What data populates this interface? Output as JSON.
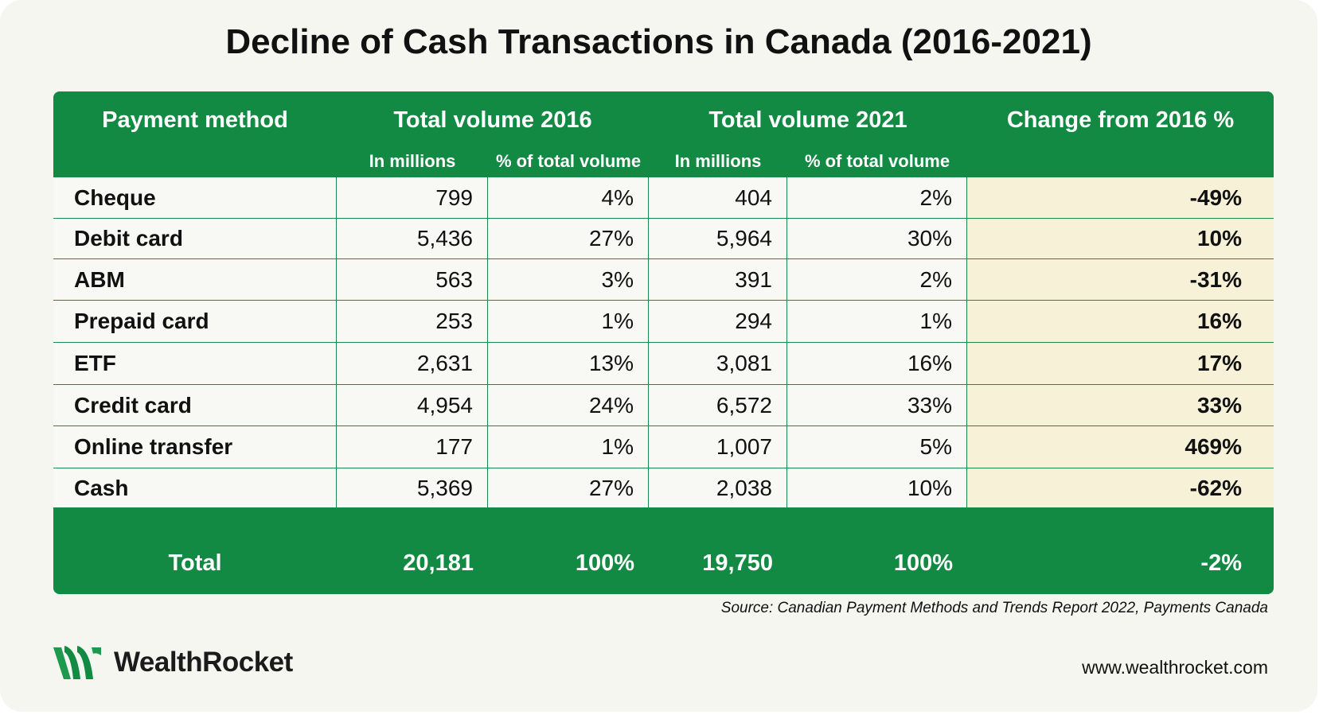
{
  "title": "Decline of Cash Transactions in Canada (2016-2021)",
  "table": {
    "headers": {
      "method": "Payment method",
      "vol2016": "Total volume 2016",
      "vol2021": "Total volume 2021",
      "change": "Change from 2016 %",
      "sub_millions_2016": "In millions",
      "sub_pct_2016": "% of total volume",
      "sub_millions_2021": "In millions",
      "sub_pct_2021": "% of total volume"
    },
    "rows": [
      {
        "method": "Cheque",
        "m2016": "799",
        "p2016": "4%",
        "m2021": "404",
        "p2021": "2%",
        "change": "-49%"
      },
      {
        "method": "Debit card",
        "m2016": "5,436",
        "p2016": "27%",
        "m2021": "5,964",
        "p2021": "30%",
        "change": "10%"
      },
      {
        "method": "ABM",
        "m2016": "563",
        "p2016": "3%",
        "m2021": "391",
        "p2021": "2%",
        "change": "-31%"
      },
      {
        "method": "Prepaid card",
        "m2016": "253",
        "p2016": "1%",
        "m2021": "294",
        "p2021": "1%",
        "change": "16%"
      },
      {
        "method": "ETF",
        "m2016": "2,631",
        "p2016": "13%",
        "m2021": "3,081",
        "p2021": "16%",
        "change": "17%"
      },
      {
        "method": "Credit card",
        "m2016": "4,954",
        "p2016": "24%",
        "m2021": "6,572",
        "p2021": "33%",
        "change": "33%"
      },
      {
        "method": "Online transfer",
        "m2016": "177",
        "p2016": "1%",
        "m2021": "1,007",
        "p2021": "5%",
        "change": "469%"
      },
      {
        "method": "Cash",
        "m2016": "5,369",
        "p2016": "27%",
        "m2021": "2,038",
        "p2021": "10%",
        "change": "-62%"
      }
    ],
    "total": {
      "method": "Total",
      "m2016": "20,181",
      "p2016": "100%",
      "m2021": "19,750",
      "p2021": "100%",
      "change": "-2%"
    }
  },
  "source": "Source: Canadian Payment Methods and Trends Report 2022, Payments Canada",
  "logo": {
    "name": "WealthRocket",
    "icon": "wealthrocket-logo-icon"
  },
  "site": "www.wealthrocket.com",
  "colors": {
    "green": "#138a43",
    "highlight": "#f7f1d8",
    "background": "#f6f6f1"
  }
}
